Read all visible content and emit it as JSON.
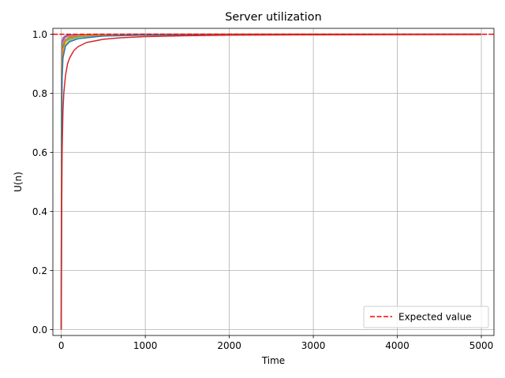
{
  "chart_data": {
    "type": "line",
    "title": "Server utilization",
    "xlabel": "Time",
    "ylabel": "U(n)",
    "xlim": [
      -100,
      5150
    ],
    "ylim": [
      -0.02,
      1.02
    ],
    "xticks": [
      0,
      1000,
      2000,
      3000,
      4000,
      5000
    ],
    "yticks": [
      0.0,
      0.2,
      0.4,
      0.6,
      0.8,
      1.0
    ],
    "xtick_labels": [
      "0",
      "1000",
      "2000",
      "3000",
      "4000",
      "5000"
    ],
    "ytick_labels": [
      "0.0",
      "0.2",
      "0.4",
      "0.6",
      "0.8",
      "1.0"
    ],
    "grid": true,
    "legend_position": "bottom-right",
    "reference_line": {
      "label": "Expected value",
      "y": 1.0,
      "color": "#ff0000",
      "style": "dashed"
    },
    "series": [
      {
        "color": "#9467bd",
        "x": [
          0,
          1,
          2,
          5,
          10,
          20,
          50,
          100,
          200,
          500,
          1000,
          2000,
          5000
        ],
        "values": [
          0.0,
          0.5,
          0.8,
          0.93,
          0.975,
          0.988,
          0.995,
          0.998,
          0.999,
          1.0,
          1.0,
          1.0,
          1.0
        ]
      },
      {
        "color": "#8c564b",
        "x": [
          0,
          1,
          2,
          5,
          10,
          20,
          50,
          100,
          200,
          500,
          1000,
          2000,
          5000
        ],
        "values": [
          0.0,
          0.45,
          0.75,
          0.9,
          0.96,
          0.98,
          0.992,
          0.996,
          0.998,
          0.999,
          1.0,
          1.0,
          1.0
        ]
      },
      {
        "color": "#7f7f7f",
        "x": [
          0,
          1,
          2,
          5,
          10,
          20,
          50,
          100,
          200,
          500,
          1000,
          2000,
          5000
        ],
        "values": [
          0.0,
          0.4,
          0.7,
          0.88,
          0.95,
          0.975,
          0.99,
          0.995,
          0.997,
          0.999,
          1.0,
          1.0,
          1.0
        ]
      },
      {
        "color": "#e377c2",
        "x": [
          0,
          1,
          2,
          5,
          10,
          20,
          50,
          100,
          200,
          500,
          1000,
          2000,
          5000
        ],
        "values": [
          0.0,
          0.35,
          0.65,
          0.85,
          0.94,
          0.97,
          0.988,
          0.994,
          0.997,
          0.999,
          1.0,
          1.0,
          1.0
        ]
      },
      {
        "color": "#bcbd22",
        "x": [
          0,
          1,
          2,
          5,
          10,
          20,
          50,
          100,
          200,
          500,
          1000,
          2000,
          5000
        ],
        "values": [
          0.0,
          0.3,
          0.55,
          0.78,
          0.88,
          0.93,
          0.965,
          0.98,
          0.99,
          0.996,
          0.998,
          0.999,
          1.0
        ]
      },
      {
        "color": "#17becf",
        "x": [
          0,
          1,
          2,
          5,
          10,
          20,
          50,
          100,
          200,
          500,
          1000,
          2000,
          5000
        ],
        "values": [
          0.0,
          0.3,
          0.55,
          0.8,
          0.9,
          0.95,
          0.975,
          0.985,
          0.992,
          0.997,
          0.999,
          1.0,
          1.0
        ]
      },
      {
        "color": "#2ca02c",
        "x": [
          0,
          1,
          2,
          5,
          10,
          20,
          50,
          100,
          200,
          500,
          1000,
          2000,
          5000
        ],
        "values": [
          0.0,
          0.35,
          0.6,
          0.82,
          0.92,
          0.96,
          0.98,
          0.99,
          0.995,
          0.998,
          0.999,
          1.0,
          1.0
        ]
      },
      {
        "color": "#ff7f0e",
        "x": [
          0,
          1,
          2,
          5,
          10,
          20,
          50,
          100,
          200,
          500,
          1000,
          2000,
          5000
        ],
        "values": [
          0.0,
          0.3,
          0.55,
          0.8,
          0.9,
          0.95,
          0.978,
          0.988,
          0.994,
          0.998,
          0.999,
          1.0,
          1.0
        ]
      },
      {
        "color": "#1f77b4",
        "x": [
          0,
          1,
          3,
          6,
          10,
          20,
          50,
          100,
          200,
          500,
          1000,
          2000,
          5000
        ],
        "values": [
          0.0,
          0.2,
          0.345,
          0.7,
          0.85,
          0.92,
          0.96,
          0.975,
          0.985,
          0.994,
          0.997,
          0.999,
          1.0
        ]
      },
      {
        "color": "#d62728",
        "x": [
          0,
          2,
          5,
          10,
          20,
          30,
          50,
          75,
          100,
          150,
          200,
          300,
          500,
          700,
          1000,
          1500,
          2000,
          3000,
          5000
        ],
        "values": [
          0.0,
          0.15,
          0.4,
          0.6,
          0.74,
          0.8,
          0.86,
          0.9,
          0.92,
          0.945,
          0.958,
          0.972,
          0.983,
          0.988,
          0.992,
          0.995,
          0.997,
          0.998,
          0.999
        ]
      }
    ]
  }
}
